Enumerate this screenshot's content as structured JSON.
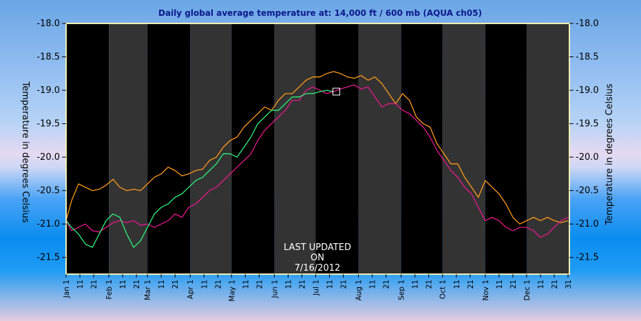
{
  "chart_data": {
    "type": "line",
    "title": "Daily global average temperature at: 14,000 ft / 600 mb (AQUA ch05)",
    "ylabel_left": "Temperature in degrees Celsius",
    "ylabel_right": "Temperature in degrees Celsius",
    "ylim": [
      -21.75,
      -18.0
    ],
    "yticks": [
      -18.0,
      -18.5,
      -19.0,
      -19.5,
      -20.0,
      -20.5,
      -21.0,
      -21.5
    ],
    "ytick_labels": [
      "-18.0",
      "-18.5",
      "-19.0",
      "-19.5",
      "-20.0",
      "-20.5",
      "-21.0",
      "-21.5"
    ],
    "xlim": [
      1,
      366
    ],
    "month_starts": [
      1,
      32,
      60,
      91,
      121,
      152,
      182,
      213,
      244,
      274,
      305,
      335
    ],
    "xtick_labels": [
      "Jan 1",
      "11",
      "21",
      "Feb 1",
      "11",
      "21",
      "Mar 1",
      "11",
      "21",
      "Apr 1",
      "11",
      "21",
      "May 1",
      "11",
      "21",
      "Jun 1",
      "11",
      "21",
      "Jul 1",
      "11",
      "21",
      "Aug 1",
      "11",
      "21",
      "Sep 1",
      "11",
      "21",
      "Oct 1",
      "11",
      "21",
      "Nov 1",
      "11",
      "21",
      "Dec 1",
      "11",
      "21",
      "31"
    ],
    "xtick_days": [
      1,
      11,
      21,
      32,
      42,
      52,
      60,
      70,
      80,
      91,
      101,
      111,
      121,
      131,
      141,
      152,
      162,
      172,
      182,
      192,
      202,
      213,
      223,
      233,
      244,
      254,
      264,
      274,
      284,
      294,
      305,
      315,
      325,
      335,
      345,
      355,
      365
    ],
    "grid": false,
    "series": [
      {
        "color": "#ff9a1a",
        "x": [
          1,
          5,
          10,
          15,
          20,
          25,
          30,
          35,
          40,
          45,
          50,
          55,
          60,
          65,
          70,
          75,
          80,
          85,
          90,
          95,
          100,
          105,
          110,
          115,
          120,
          125,
          130,
          135,
          140,
          145,
          150,
          155,
          160,
          165,
          170,
          175,
          180,
          185,
          190,
          195,
          200,
          205,
          210,
          215,
          220,
          225,
          230,
          235,
          240,
          245,
          250,
          255,
          260,
          265,
          270,
          275,
          280,
          285,
          290,
          295,
          300,
          305,
          310,
          315,
          320,
          325,
          330,
          335,
          340,
          345,
          350,
          355,
          360,
          365
        ],
        "values": [
          -20.95,
          -20.65,
          -20.4,
          -20.45,
          -20.5,
          -20.48,
          -20.42,
          -20.33,
          -20.45,
          -20.5,
          -20.48,
          -20.5,
          -20.4,
          -20.3,
          -20.25,
          -20.15,
          -20.2,
          -20.28,
          -20.25,
          -20.2,
          -20.18,
          -20.05,
          -20.0,
          -19.85,
          -19.75,
          -19.7,
          -19.55,
          -19.45,
          -19.35,
          -19.25,
          -19.3,
          -19.15,
          -19.05,
          -19.05,
          -18.95,
          -18.85,
          -18.8,
          -18.8,
          -18.75,
          -18.72,
          -18.75,
          -18.8,
          -18.82,
          -18.78,
          -18.85,
          -18.8,
          -18.9,
          -19.05,
          -19.2,
          -19.05,
          -19.15,
          -19.4,
          -19.5,
          -19.55,
          -19.8,
          -19.95,
          -20.1,
          -20.1,
          -20.3,
          -20.45,
          -20.6,
          -20.35,
          -20.45,
          -20.55,
          -20.7,
          -20.9,
          -21.0,
          -20.95,
          -20.9,
          -20.95,
          -20.9,
          -20.95,
          -20.98,
          -20.95
        ]
      },
      {
        "color": "#e8198c",
        "x": [
          1,
          5,
          10,
          15,
          20,
          25,
          30,
          35,
          40,
          45,
          50,
          55,
          60,
          65,
          70,
          75,
          80,
          85,
          90,
          95,
          100,
          105,
          110,
          115,
          120,
          125,
          130,
          135,
          140,
          145,
          150,
          155,
          160,
          165,
          170,
          175,
          180,
          185,
          190,
          195,
          200,
          205,
          210,
          215,
          220,
          225,
          230,
          235,
          240,
          245,
          250,
          255,
          260,
          265,
          270,
          275,
          280,
          285,
          290,
          295,
          300,
          305,
          310,
          315,
          320,
          325,
          330,
          335,
          340,
          345,
          350,
          355,
          360,
          365
        ],
        "values": [
          -20.95,
          -21.1,
          -21.05,
          -21.0,
          -21.1,
          -21.12,
          -21.05,
          -20.98,
          -20.95,
          -20.98,
          -20.95,
          -21.02,
          -21.0,
          -21.05,
          -21.0,
          -20.95,
          -20.85,
          -20.9,
          -20.75,
          -20.7,
          -20.6,
          -20.5,
          -20.45,
          -20.35,
          -20.25,
          -20.15,
          -20.05,
          -19.95,
          -19.75,
          -19.6,
          -19.5,
          -19.4,
          -19.3,
          -19.15,
          -19.15,
          -19.0,
          -18.95,
          -19.0,
          -19.05,
          -19.02,
          -18.98,
          -18.95,
          -18.92,
          -18.98,
          -18.95,
          -19.1,
          -19.25,
          -19.2,
          -19.2,
          -19.3,
          -19.35,
          -19.45,
          -19.55,
          -19.7,
          -19.9,
          -20.05,
          -20.2,
          -20.3,
          -20.45,
          -20.55,
          -20.75,
          -20.95,
          -20.9,
          -20.95,
          -21.05,
          -21.1,
          -21.05,
          -21.05,
          -21.1,
          -21.2,
          -21.15,
          -21.05,
          -20.95,
          -20.9
        ]
      },
      {
        "color": "#2ef27d",
        "x": [
          1,
          5,
          10,
          15,
          20,
          25,
          30,
          35,
          40,
          45,
          50,
          55,
          60,
          65,
          70,
          75,
          80,
          85,
          90,
          95,
          100,
          105,
          110,
          115,
          120,
          125,
          130,
          135,
          140,
          145,
          150,
          155,
          160,
          165,
          170,
          175,
          180,
          185,
          190,
          195
        ],
        "values": [
          -20.95,
          -21.05,
          -21.15,
          -21.3,
          -21.35,
          -21.15,
          -20.95,
          -20.85,
          -20.9,
          -21.15,
          -21.35,
          -21.25,
          -21.05,
          -20.85,
          -20.75,
          -20.7,
          -20.6,
          -20.55,
          -20.45,
          -20.35,
          -20.3,
          -20.2,
          -20.1,
          -19.95,
          -19.95,
          -20.0,
          -19.85,
          -19.7,
          -19.5,
          -19.4,
          -19.3,
          -19.3,
          -19.2,
          -19.1,
          -19.1,
          -19.05,
          -19.05,
          -19.02,
          -19.0,
          -19.02
        ]
      }
    ],
    "last_point": {
      "day": 197,
      "value": -19.02
    },
    "annotation": [
      "LAST UPDATED",
      "ON",
      "7/16/2012"
    ]
  },
  "colors": {
    "plot_dark": "#000000",
    "plot_gray": "#333333",
    "frame": "#f2efb2"
  }
}
